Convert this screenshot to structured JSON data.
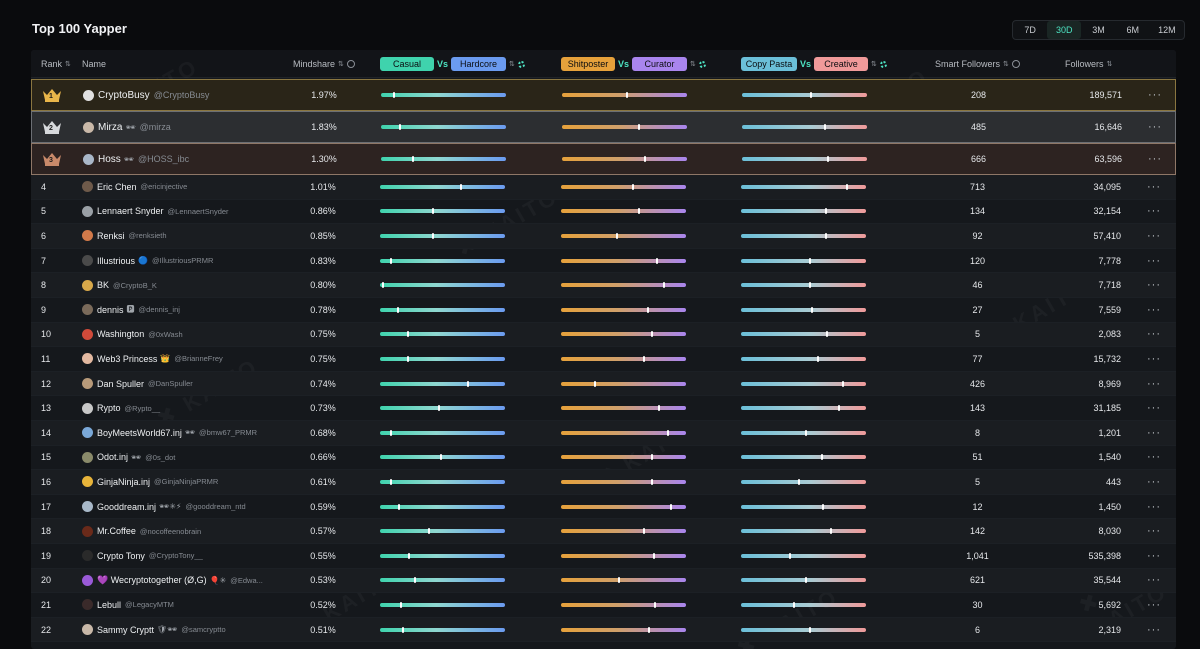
{
  "title": "Top 100 Yapper",
  "periods": [
    {
      "label": "7D",
      "active": false
    },
    {
      "label": "30D",
      "active": true
    },
    {
      "label": "3M",
      "active": false
    },
    {
      "label": "6M",
      "active": false
    },
    {
      "label": "12M",
      "active": false
    }
  ],
  "headers": {
    "rank": "Rank",
    "name": "Name",
    "mindshare": "Mindshare",
    "casual": "Casual",
    "hardcore": "Hardcore",
    "shitposter": "Shitposter",
    "curator": "Curator",
    "copypasta": "Copy Pasta",
    "creative": "Creative",
    "vs": "Vs",
    "smart_followers": "Smart Followers",
    "followers": "Followers"
  },
  "colors": {
    "accent": "#4de3c2",
    "casual": "#3fd3ad",
    "hardcore": "#6b9bf0",
    "shitposter": "#e6a13b",
    "curator": "#a985ee",
    "copypasta": "#6bbfd8",
    "creative": "#f09a9a",
    "gold": "#e9b64a",
    "silver": "#d7d9dc",
    "bronze": "#c98a6a"
  },
  "more_label": "···",
  "watermark": "KAITO",
  "rows": [
    {
      "rank": "1",
      "name": "CryptoBusy",
      "handle": "@CryptoBusy",
      "badge": "",
      "mindshare": "1.97%",
      "smart_followers": "208",
      "followers": "189,571",
      "casual_hardcore": 0.1,
      "shitposter_curator": 0.52,
      "copypasta_creative": 0.55,
      "avatar": "#e0e0e0"
    },
    {
      "rank": "2",
      "name": "Mirza",
      "handle": "@mirza",
      "badge": "🕶",
      "mindshare": "1.83%",
      "smart_followers": "485",
      "followers": "16,646",
      "casual_hardcore": 0.15,
      "shitposter_curator": 0.62,
      "copypasta_creative": 0.67,
      "avatar": "#c9b8a8"
    },
    {
      "rank": "3",
      "name": "Hoss",
      "handle": "@HOSS_ibc",
      "badge": "🕶",
      "mindshare": "1.30%",
      "smart_followers": "666",
      "followers": "63,596",
      "casual_hardcore": 0.25,
      "shitposter_curator": 0.67,
      "copypasta_creative": 0.69,
      "avatar": "#a9b7c8"
    },
    {
      "rank": "4",
      "name": "Eric Chen",
      "handle": "@ericinjective",
      "badge": "",
      "mindshare": "1.01%",
      "smart_followers": "713",
      "followers": "34,095",
      "casual_hardcore": 0.65,
      "shitposter_curator": 0.58,
      "copypasta_creative": 0.85,
      "avatar": "#6e5a4a"
    },
    {
      "rank": "5",
      "name": "Lennaert Snyder",
      "handle": "@LennaertSnyder",
      "badge": "",
      "mindshare": "0.86%",
      "smart_followers": "134",
      "followers": "32,154",
      "casual_hardcore": 0.42,
      "shitposter_curator": 0.63,
      "copypasta_creative": 0.68,
      "avatar": "#9aa0a6"
    },
    {
      "rank": "6",
      "name": "Renksi",
      "handle": "@renksieth",
      "badge": "",
      "mindshare": "0.85%",
      "smart_followers": "92",
      "followers": "57,410",
      "casual_hardcore": 0.42,
      "shitposter_curator": 0.45,
      "copypasta_creative": 0.68,
      "avatar": "#d27a4a"
    },
    {
      "rank": "7",
      "name": "Illustrious",
      "handle": "@IllustriousPRMR",
      "badge": "🔵",
      "mindshare": "0.83%",
      "smart_followers": "120",
      "followers": "7,778",
      "casual_hardcore": 0.08,
      "shitposter_curator": 0.77,
      "copypasta_creative": 0.55,
      "avatar": "#4a4a4a"
    },
    {
      "rank": "8",
      "name": "BK",
      "handle": "@CryptoB_K",
      "badge": "",
      "mindshare": "0.80%",
      "smart_followers": "46",
      "followers": "7,718",
      "casual_hardcore": 0.02,
      "shitposter_curator": 0.83,
      "copypasta_creative": 0.55,
      "avatar": "#d8a84a"
    },
    {
      "rank": "9",
      "name": "dennis",
      "handle": "@dennis_inj",
      "badge": "🅿",
      "mindshare": "0.78%",
      "smart_followers": "27",
      "followers": "7,559",
      "casual_hardcore": 0.14,
      "shitposter_curator": 0.7,
      "copypasta_creative": 0.57,
      "avatar": "#7a6a5a"
    },
    {
      "rank": "10",
      "name": "Washington",
      "handle": "@0xWash",
      "badge": "",
      "mindshare": "0.75%",
      "smart_followers": "5",
      "followers": "2,083",
      "casual_hardcore": 0.22,
      "shitposter_curator": 0.73,
      "copypasta_creative": 0.69,
      "avatar": "#d04a3a"
    },
    {
      "rank": "11",
      "name": "Web3 Princess",
      "handle": "@BrianneFrey",
      "badge": "👑",
      "mindshare": "0.75%",
      "smart_followers": "77",
      "followers": "15,732",
      "casual_hardcore": 0.22,
      "shitposter_curator": 0.67,
      "copypasta_creative": 0.62,
      "avatar": "#e2b8a0"
    },
    {
      "rank": "12",
      "name": "Dan Spuller",
      "handle": "@DanSpuller",
      "badge": "",
      "mindshare": "0.74%",
      "smart_followers": "426",
      "followers": "8,969",
      "casual_hardcore": 0.71,
      "shitposter_curator": 0.27,
      "copypasta_creative": 0.82,
      "avatar": "#b89a7a"
    },
    {
      "rank": "13",
      "name": "Rypto",
      "handle": "@Rypto__",
      "badge": "",
      "mindshare": "0.73%",
      "smart_followers": "143",
      "followers": "31,185",
      "casual_hardcore": 0.47,
      "shitposter_curator": 0.79,
      "copypasta_creative": 0.79,
      "avatar": "#c8c8c8"
    },
    {
      "rank": "14",
      "name": "BoyMeetsWorld67.inj",
      "handle": "@bmw67_PRMR",
      "badge": "🕶",
      "mindshare": "0.68%",
      "smart_followers": "8",
      "followers": "1,201",
      "casual_hardcore": 0.08,
      "shitposter_curator": 0.86,
      "copypasta_creative": 0.52,
      "avatar": "#7aa8d8"
    },
    {
      "rank": "15",
      "name": "Odot.inj",
      "handle": "@0s_dot",
      "badge": "🕶",
      "mindshare": "0.66%",
      "smart_followers": "51",
      "followers": "1,540",
      "casual_hardcore": 0.49,
      "shitposter_curator": 0.73,
      "copypasta_creative": 0.65,
      "avatar": "#8a8a6a"
    },
    {
      "rank": "16",
      "name": "GinjaNinja.inj",
      "handle": "@GinjaNinjaPRMR",
      "badge": "",
      "mindshare": "0.61%",
      "smart_followers": "5",
      "followers": "443",
      "casual_hardcore": 0.08,
      "shitposter_curator": 0.73,
      "copypasta_creative": 0.46,
      "avatar": "#e8b43a"
    },
    {
      "rank": "17",
      "name": "Gooddream.inj",
      "handle": "@gooddream_ntd",
      "badge": "🕶✳⚡",
      "mindshare": "0.59%",
      "smart_followers": "12",
      "followers": "1,450",
      "casual_hardcore": 0.15,
      "shitposter_curator": 0.89,
      "copypasta_creative": 0.66,
      "avatar": "#a8b8c8"
    },
    {
      "rank": "18",
      "name": "Mr.Coffee",
      "handle": "@nocoffeenobrain",
      "badge": "",
      "mindshare": "0.57%",
      "smart_followers": "142",
      "followers": "8,030",
      "casual_hardcore": 0.39,
      "shitposter_curator": 0.67,
      "copypasta_creative": 0.72,
      "avatar": "#6a2a1a"
    },
    {
      "rank": "19",
      "name": "Crypto Tony",
      "handle": "@CryptoTony__",
      "badge": "",
      "mindshare": "0.55%",
      "smart_followers": "1,041",
      "followers": "535,398",
      "casual_hardcore": 0.23,
      "shitposter_curator": 0.75,
      "copypasta_creative": 0.39,
      "avatar": "#2a2a2a"
    },
    {
      "rank": "20",
      "name": "💜 Wecryptotogether (Ø,G)",
      "handle": "@Edwa...",
      "badge": "🎈✳",
      "mindshare": "0.53%",
      "smart_followers": "621",
      "followers": "35,544",
      "casual_hardcore": 0.28,
      "shitposter_curator": 0.46,
      "copypasta_creative": 0.52,
      "avatar": "#9a5ad8"
    },
    {
      "rank": "21",
      "name": "Lebull",
      "handle": "@LegacyMTM",
      "badge": "",
      "mindshare": "0.52%",
      "smart_followers": "30",
      "followers": "5,692",
      "casual_hardcore": 0.16,
      "shitposter_curator": 0.76,
      "copypasta_creative": 0.42,
      "avatar": "#3a2a2a"
    },
    {
      "rank": "22",
      "name": "Sammy Cryptt",
      "handle": "@samcryptto",
      "badge": "🛡🕶",
      "mindshare": "0.51%",
      "smart_followers": "6",
      "followers": "2,319",
      "casual_hardcore": 0.18,
      "shitposter_curator": 0.71,
      "copypasta_creative": 0.55,
      "avatar": "#c8b8a8"
    }
  ]
}
